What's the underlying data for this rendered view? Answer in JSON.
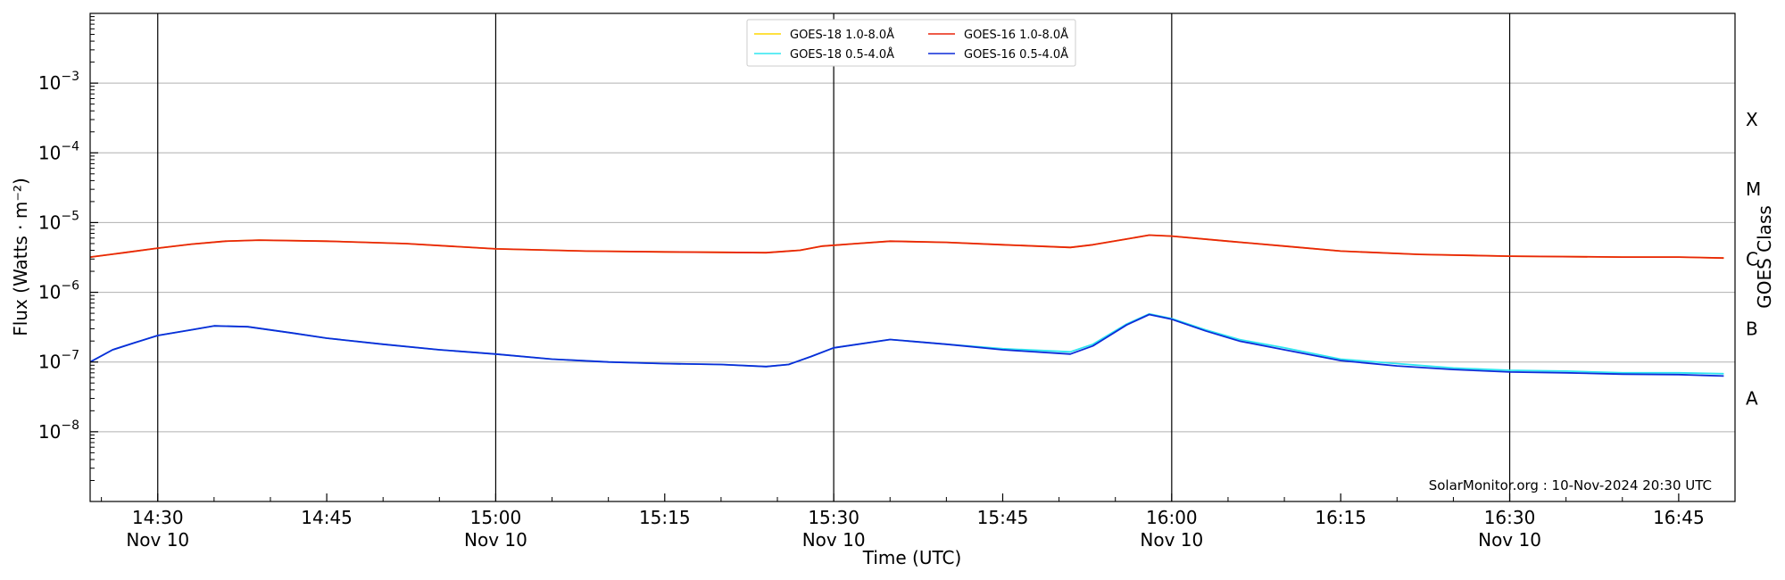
{
  "chart_data": {
    "type": "line",
    "title": "",
    "xlabel": "Time (UTC)",
    "ylabel": "Flux (Watts · m⁻²)",
    "y2label": "GOES Class",
    "yscale": "log",
    "x_range": [
      "14:24",
      "16:50"
    ],
    "ylim": [
      1e-09,
      0.01
    ],
    "grid": "horizontal",
    "legend_position": "top-center",
    "x_ticks": [
      {
        "time": "14:30",
        "label": "14:30",
        "sublabel": "Nov 10",
        "day_line": true
      },
      {
        "time": "14:45",
        "label": "14:45",
        "sublabel": "",
        "day_line": false
      },
      {
        "time": "15:00",
        "label": "15:00",
        "sublabel": "Nov 10",
        "day_line": true
      },
      {
        "time": "15:15",
        "label": "15:15",
        "sublabel": "",
        "day_line": false
      },
      {
        "time": "15:30",
        "label": "15:30",
        "sublabel": "Nov 10",
        "day_line": true
      },
      {
        "time": "15:45",
        "label": "15:45",
        "sublabel": "",
        "day_line": false
      },
      {
        "time": "16:00",
        "label": "16:00",
        "sublabel": "Nov 10",
        "day_line": true
      },
      {
        "time": "16:15",
        "label": "16:15",
        "sublabel": "",
        "day_line": false
      },
      {
        "time": "16:30",
        "label": "16:30",
        "sublabel": "Nov 10",
        "day_line": true
      },
      {
        "time": "16:45",
        "label": "16:45",
        "sublabel": "",
        "day_line": false
      }
    ],
    "y_ticks": [
      {
        "value": 1e-08,
        "base": "10",
        "exp": "−8"
      },
      {
        "value": 1e-07,
        "base": "10",
        "exp": "−7"
      },
      {
        "value": 1e-06,
        "base": "10",
        "exp": "−6"
      },
      {
        "value": 1e-05,
        "base": "10",
        "exp": "−5"
      },
      {
        "value": 0.0001,
        "base": "10",
        "exp": "−4"
      },
      {
        "value": 0.001,
        "base": "10",
        "exp": "−3"
      }
    ],
    "goes_classes": [
      {
        "label": "A",
        "value": 3e-08
      },
      {
        "label": "B",
        "value": 3e-07
      },
      {
        "label": "C",
        "value": 3e-06
      },
      {
        "label": "M",
        "value": 3e-05
      },
      {
        "label": "X",
        "value": 0.0003
      }
    ],
    "credit": "SolarMonitor.org : 10-Nov-2024 20:30 UTC",
    "series": [
      {
        "name": "GOES-18 1.0-8.0Å",
        "color": "#ffd700",
        "points": [
          [
            "14:24",
            3.2e-06
          ],
          [
            "14:27",
            3.7e-06
          ],
          [
            "14:30",
            4.3e-06
          ],
          [
            "14:33",
            4.9e-06
          ],
          [
            "14:36",
            5.4e-06
          ],
          [
            "14:39",
            5.6e-06
          ],
          [
            "14:45",
            5.4e-06
          ],
          [
            "14:52",
            5e-06
          ],
          [
            "15:00",
            4.2e-06
          ],
          [
            "15:08",
            3.9e-06
          ],
          [
            "15:15",
            3.8e-06
          ],
          [
            "15:24",
            3.7e-06
          ],
          [
            "15:27",
            4e-06
          ],
          [
            "15:29",
            4.6e-06
          ],
          [
            "15:32",
            5e-06
          ],
          [
            "15:35",
            5.4e-06
          ],
          [
            "15:40",
            5.2e-06
          ],
          [
            "15:45",
            4.8e-06
          ],
          [
            "15:51",
            4.4e-06
          ],
          [
            "15:53",
            4.8e-06
          ],
          [
            "15:56",
            5.8e-06
          ],
          [
            "15:58",
            6.6e-06
          ],
          [
            "16:00",
            6.4e-06
          ],
          [
            "16:05",
            5.4e-06
          ],
          [
            "16:10",
            4.6e-06
          ],
          [
            "16:15",
            3.9e-06
          ],
          [
            "16:22",
            3.5e-06
          ],
          [
            "16:30",
            3.3e-06
          ],
          [
            "16:40",
            3.2e-06
          ],
          [
            "16:45",
            3.2e-06
          ],
          [
            "16:49",
            3.1e-06
          ]
        ]
      },
      {
        "name": "GOES-16 1.0-8.0Å",
        "color": "#e8250c",
        "points": [
          [
            "14:24",
            3.2e-06
          ],
          [
            "14:27",
            3.7e-06
          ],
          [
            "14:30",
            4.3e-06
          ],
          [
            "14:33",
            4.9e-06
          ],
          [
            "14:36",
            5.4e-06
          ],
          [
            "14:39",
            5.6e-06
          ],
          [
            "14:45",
            5.4e-06
          ],
          [
            "14:52",
            5e-06
          ],
          [
            "15:00",
            4.2e-06
          ],
          [
            "15:08",
            3.9e-06
          ],
          [
            "15:15",
            3.8e-06
          ],
          [
            "15:24",
            3.7e-06
          ],
          [
            "15:27",
            4e-06
          ],
          [
            "15:29",
            4.6e-06
          ],
          [
            "15:32",
            5e-06
          ],
          [
            "15:35",
            5.4e-06
          ],
          [
            "15:40",
            5.2e-06
          ],
          [
            "15:45",
            4.8e-06
          ],
          [
            "15:51",
            4.4e-06
          ],
          [
            "15:53",
            4.8e-06
          ],
          [
            "15:56",
            5.8e-06
          ],
          [
            "15:58",
            6.6e-06
          ],
          [
            "16:00",
            6.4e-06
          ],
          [
            "16:05",
            5.4e-06
          ],
          [
            "16:10",
            4.6e-06
          ],
          [
            "16:15",
            3.9e-06
          ],
          [
            "16:22",
            3.5e-06
          ],
          [
            "16:30",
            3.3e-06
          ],
          [
            "16:40",
            3.2e-06
          ],
          [
            "16:45",
            3.2e-06
          ],
          [
            "16:49",
            3.1e-06
          ]
        ]
      },
      {
        "name": "GOES-18 0.5-4.0Å",
        "color": "#2ee6f0",
        "points": [
          [
            "14:24",
            1e-07
          ],
          [
            "14:26",
            1.5e-07
          ],
          [
            "14:28",
            1.9e-07
          ],
          [
            "14:30",
            2.4e-07
          ],
          [
            "14:33",
            2.9e-07
          ],
          [
            "14:35",
            3.3e-07
          ],
          [
            "14:38",
            3.2e-07
          ],
          [
            "14:42",
            2.6e-07
          ],
          [
            "14:45",
            2.2e-07
          ],
          [
            "14:50",
            1.8e-07
          ],
          [
            "14:55",
            1.5e-07
          ],
          [
            "15:00",
            1.3e-07
          ],
          [
            "15:05",
            1.1e-07
          ],
          [
            "15:10",
            1e-07
          ],
          [
            "15:15",
            9.5e-08
          ],
          [
            "15:20",
            9.2e-08
          ],
          [
            "15:24",
            8.6e-08
          ],
          [
            "15:26",
            9.2e-08
          ],
          [
            "15:28",
            1.2e-07
          ],
          [
            "15:30",
            1.6e-07
          ],
          [
            "15:35",
            2.1e-07
          ],
          [
            "15:40",
            1.8e-07
          ],
          [
            "15:45",
            1.55e-07
          ],
          [
            "15:51",
            1.4e-07
          ],
          [
            "15:53",
            1.8e-07
          ],
          [
            "15:56",
            3.5e-07
          ],
          [
            "15:58",
            4.9e-07
          ],
          [
            "16:00",
            4.2e-07
          ],
          [
            "16:03",
            2.9e-07
          ],
          [
            "16:06",
            2.1e-07
          ],
          [
            "16:10",
            1.6e-07
          ],
          [
            "16:15",
            1.1e-07
          ],
          [
            "16:20",
            9.5e-08
          ],
          [
            "16:25",
            8.2e-08
          ],
          [
            "16:30",
            7.6e-08
          ],
          [
            "16:35",
            7.4e-08
          ],
          [
            "16:40",
            7e-08
          ],
          [
            "16:45",
            7e-08
          ],
          [
            "16:49",
            6.8e-08
          ]
        ]
      },
      {
        "name": "GOES-16 0.5-4.0Å",
        "color": "#0d2bd8",
        "points": [
          [
            "14:24",
            1e-07
          ],
          [
            "14:26",
            1.5e-07
          ],
          [
            "14:28",
            1.9e-07
          ],
          [
            "14:30",
            2.4e-07
          ],
          [
            "14:33",
            2.9e-07
          ],
          [
            "14:35",
            3.3e-07
          ],
          [
            "14:38",
            3.2e-07
          ],
          [
            "14:42",
            2.6e-07
          ],
          [
            "14:45",
            2.2e-07
          ],
          [
            "14:50",
            1.8e-07
          ],
          [
            "14:55",
            1.5e-07
          ],
          [
            "15:00",
            1.3e-07
          ],
          [
            "15:05",
            1.1e-07
          ],
          [
            "15:10",
            1e-07
          ],
          [
            "15:15",
            9.5e-08
          ],
          [
            "15:20",
            9.2e-08
          ],
          [
            "15:24",
            8.6e-08
          ],
          [
            "15:26",
            9.2e-08
          ],
          [
            "15:28",
            1.2e-07
          ],
          [
            "15:30",
            1.6e-07
          ],
          [
            "15:35",
            2.1e-07
          ],
          [
            "15:40",
            1.8e-07
          ],
          [
            "15:45",
            1.5e-07
          ],
          [
            "15:51",
            1.3e-07
          ],
          [
            "15:53",
            1.7e-07
          ],
          [
            "15:56",
            3.4e-07
          ],
          [
            "15:58",
            4.8e-07
          ],
          [
            "16:00",
            4.1e-07
          ],
          [
            "16:03",
            2.8e-07
          ],
          [
            "16:06",
            2e-07
          ],
          [
            "16:10",
            1.5e-07
          ],
          [
            "16:15",
            1.05e-07
          ],
          [
            "16:20",
            8.8e-08
          ],
          [
            "16:25",
            7.8e-08
          ],
          [
            "16:30",
            7.2e-08
          ],
          [
            "16:35",
            7e-08
          ],
          [
            "16:40",
            6.7e-08
          ],
          [
            "16:45",
            6.6e-08
          ],
          [
            "16:49",
            6.3e-08
          ]
        ]
      }
    ]
  }
}
